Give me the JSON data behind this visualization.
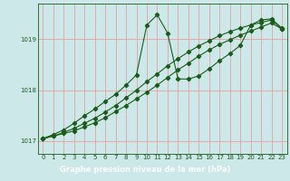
{
  "xlabel": "Graphe pression niveau de la mer (hPa)",
  "bg_color": "#cce8e8",
  "grid_color": "#e8a0a0",
  "line_color": "#1a5c1a",
  "bar_color": "#1a5c1a",
  "ylim": [
    1016.75,
    1019.7
  ],
  "xlim": [
    -0.5,
    23.5
  ],
  "yticks": [
    1017,
    1018,
    1019
  ],
  "xticks": [
    0,
    1,
    2,
    3,
    4,
    5,
    6,
    7,
    8,
    9,
    10,
    11,
    12,
    13,
    14,
    15,
    16,
    17,
    18,
    19,
    20,
    21,
    22,
    23
  ],
  "line1_x": [
    0,
    1,
    2,
    3,
    4,
    5,
    6,
    7,
    8,
    9,
    10,
    11,
    12,
    13,
    14,
    15,
    16,
    17,
    18,
    19,
    20,
    21,
    22,
    23
  ],
  "line1_y": [
    1017.05,
    1017.13,
    1017.22,
    1017.35,
    1017.5,
    1017.63,
    1017.78,
    1017.92,
    1018.1,
    1018.3,
    1019.28,
    1019.48,
    1019.12,
    1018.22,
    1018.22,
    1018.28,
    1018.42,
    1018.58,
    1018.72,
    1018.88,
    1019.28,
    1019.38,
    1019.4,
    1019.22
  ],
  "line2_x": [
    0,
    1,
    2,
    3,
    4,
    5,
    6,
    7,
    8,
    9,
    10,
    11,
    12,
    13,
    14,
    15,
    16,
    17,
    18,
    19,
    20,
    21,
    22,
    23
  ],
  "line2_y": [
    1017.05,
    1017.1,
    1017.17,
    1017.25,
    1017.35,
    1017.45,
    1017.57,
    1017.7,
    1017.85,
    1018.0,
    1018.17,
    1018.32,
    1018.48,
    1018.62,
    1018.75,
    1018.87,
    1018.97,
    1019.07,
    1019.15,
    1019.22,
    1019.28,
    1019.33,
    1019.38,
    1019.2
  ],
  "line3_x": [
    0,
    1,
    2,
    3,
    4,
    5,
    6,
    7,
    8,
    9,
    10,
    11,
    12,
    13,
    14,
    15,
    16,
    17,
    18,
    19,
    20,
    21,
    22,
    23
  ],
  "line3_y": [
    1017.05,
    1017.1,
    1017.15,
    1017.2,
    1017.28,
    1017.36,
    1017.46,
    1017.58,
    1017.7,
    1017.83,
    1017.96,
    1018.1,
    1018.25,
    1018.4,
    1018.53,
    1018.67,
    1018.79,
    1018.9,
    1018.99,
    1019.08,
    1019.16,
    1019.24,
    1019.32,
    1019.2
  ]
}
